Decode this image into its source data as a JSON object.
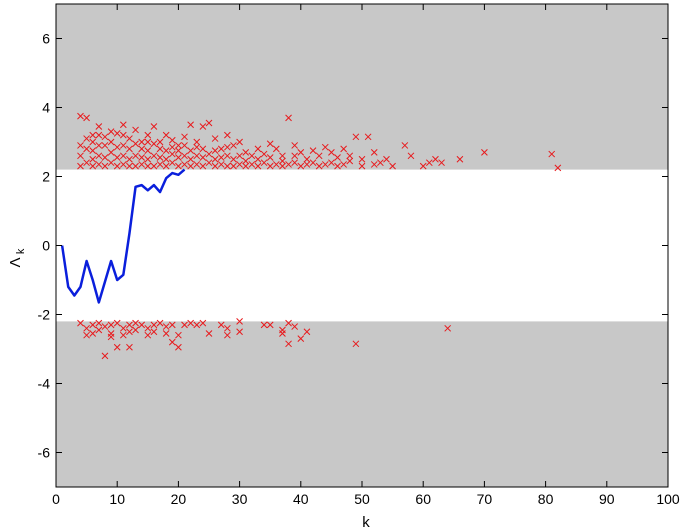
{
  "chart_data": {
    "type": "scatter",
    "xlabel": "k",
    "ylabel": "Λ",
    "ylabel_subscript": "k",
    "xlim": [
      0,
      100
    ],
    "ylim": [
      -7,
      7
    ],
    "xticks": [
      "0",
      "10",
      "20",
      "30",
      "40",
      "50",
      "60",
      "70",
      "80",
      "90",
      "100"
    ],
    "yticks": [
      "-6",
      "-4",
      "-2",
      "0",
      "2",
      "4",
      "6"
    ],
    "grid": false,
    "shaded_regions": [
      {
        "ymin": 2.2,
        "ymax": 7,
        "color": "#c8c8c8"
      },
      {
        "ymin": -7,
        "ymax": -2.2,
        "color": "#c8c8c8"
      }
    ],
    "line_series": {
      "color": "#0a1fdc",
      "points": [
        [
          1,
          0.0
        ],
        [
          2,
          -1.2
        ],
        [
          3,
          -1.45
        ],
        [
          4,
          -1.2
        ],
        [
          5,
          -0.45
        ],
        [
          6,
          -1.0
        ],
        [
          7,
          -1.65
        ],
        [
          8,
          -1.05
        ],
        [
          9,
          -0.45
        ],
        [
          10,
          -1.0
        ],
        [
          11,
          -0.85
        ],
        [
          12,
          0.35
        ],
        [
          13,
          1.7
        ],
        [
          14,
          1.75
        ],
        [
          15,
          1.6
        ],
        [
          16,
          1.75
        ],
        [
          17,
          1.55
        ],
        [
          18,
          1.95
        ],
        [
          19,
          2.1
        ],
        [
          20,
          2.05
        ],
        [
          21,
          2.2
        ]
      ]
    },
    "scatter_series": {
      "color": "#e8191c",
      "marker": "x",
      "points": [
        [
          4,
          3.75
        ],
        [
          5,
          3.7
        ],
        [
          6,
          3.2
        ],
        [
          7,
          3.45
        ],
        [
          8,
          2.9
        ],
        [
          9,
          3.3
        ],
        [
          10,
          3.25
        ],
        [
          11,
          3.5
        ],
        [
          12,
          3.1
        ],
        [
          13,
          3.35
        ],
        [
          14,
          3.0
        ],
        [
          15,
          3.2
        ],
        [
          16,
          3.45
        ],
        [
          17,
          3.0
        ],
        [
          18,
          3.2
        ],
        [
          19,
          3.05
        ],
        [
          20,
          2.9
        ],
        [
          21,
          3.15
        ],
        [
          22,
          3.5
        ],
        [
          23,
          3.0
        ],
        [
          24,
          3.45
        ],
        [
          25,
          3.55
        ],
        [
          26,
          3.1
        ],
        [
          27,
          2.8
        ],
        [
          28,
          3.2
        ],
        [
          29,
          2.9
        ],
        [
          30,
          3.0
        ],
        [
          31,
          2.7
        ],
        [
          32,
          2.6
        ],
        [
          33,
          2.8
        ],
        [
          34,
          2.65
        ],
        [
          35,
          2.95
        ],
        [
          36,
          2.8
        ],
        [
          37,
          2.6
        ],
        [
          38,
          3.7
        ],
        [
          39,
          2.9
        ],
        [
          40,
          2.7
        ],
        [
          41,
          2.5
        ],
        [
          42,
          2.75
        ],
        [
          43,
          2.6
        ],
        [
          44,
          2.85
        ],
        [
          45,
          2.7
        ],
        [
          46,
          2.55
        ],
        [
          47,
          2.8
        ],
        [
          48,
          2.6
        ],
        [
          49,
          3.15
        ],
        [
          50,
          2.5
        ],
        [
          51,
          3.15
        ],
        [
          52,
          2.7
        ],
        [
          53,
          2.4
        ],
        [
          55,
          2.3
        ],
        [
          57,
          2.9
        ],
        [
          58,
          2.6
        ],
        [
          60,
          2.3
        ],
        [
          61,
          2.4
        ],
        [
          62,
          2.5
        ],
        [
          63,
          2.4
        ],
        [
          66,
          2.5
        ],
        [
          70,
          2.7
        ],
        [
          81,
          2.65
        ],
        [
          82,
          2.25
        ],
        [
          4,
          2.3
        ],
        [
          4,
          2.6
        ],
        [
          4,
          2.9
        ],
        [
          5,
          2.4
        ],
        [
          5,
          2.8
        ],
        [
          5,
          3.1
        ],
        [
          6,
          2.3
        ],
        [
          6,
          2.5
        ],
        [
          6,
          2.75
        ],
        [
          6,
          3.0
        ],
        [
          7,
          2.35
        ],
        [
          7,
          2.6
        ],
        [
          7,
          2.9
        ],
        [
          7,
          3.2
        ],
        [
          8,
          2.3
        ],
        [
          8,
          2.55
        ],
        [
          8,
          3.15
        ],
        [
          9,
          2.4
        ],
        [
          9,
          2.7
        ],
        [
          9,
          3.0
        ],
        [
          10,
          2.3
        ],
        [
          10,
          2.55
        ],
        [
          10,
          2.85
        ],
        [
          11,
          2.35
        ],
        [
          11,
          2.6
        ],
        [
          11,
          2.9
        ],
        [
          11,
          3.2
        ],
        [
          12,
          2.3
        ],
        [
          12,
          2.5
        ],
        [
          12,
          2.8
        ],
        [
          13,
          2.3
        ],
        [
          13,
          2.6
        ],
        [
          13,
          2.95
        ],
        [
          14,
          2.35
        ],
        [
          14,
          2.55
        ],
        [
          14,
          2.8
        ],
        [
          15,
          2.3
        ],
        [
          15,
          2.5
        ],
        [
          15,
          2.75
        ],
        [
          15,
          3.0
        ],
        [
          16,
          2.3
        ],
        [
          16,
          2.6
        ],
        [
          16,
          2.95
        ],
        [
          17,
          2.35
        ],
        [
          17,
          2.55
        ],
        [
          17,
          2.8
        ],
        [
          18,
          2.3
        ],
        [
          18,
          2.5
        ],
        [
          18,
          2.75
        ],
        [
          19,
          2.4
        ],
        [
          19,
          2.65
        ],
        [
          19,
          2.85
        ],
        [
          20,
          2.3
        ],
        [
          20,
          2.55
        ],
        [
          20,
          2.75
        ],
        [
          21,
          2.35
        ],
        [
          21,
          2.6
        ],
        [
          21,
          2.9
        ],
        [
          22,
          2.3
        ],
        [
          22,
          2.5
        ],
        [
          22,
          2.75
        ],
        [
          23,
          2.35
        ],
        [
          23,
          2.6
        ],
        [
          23,
          2.85
        ],
        [
          24,
          2.3
        ],
        [
          24,
          2.55
        ],
        [
          24,
          2.8
        ],
        [
          25,
          2.4
        ],
        [
          25,
          2.65
        ],
        [
          26,
          2.3
        ],
        [
          26,
          2.5
        ],
        [
          26,
          2.75
        ],
        [
          27,
          2.35
        ],
        [
          27,
          2.55
        ],
        [
          28,
          2.3
        ],
        [
          28,
          2.6
        ],
        [
          28,
          2.85
        ],
        [
          29,
          2.3
        ],
        [
          29,
          2.5
        ],
        [
          30,
          2.35
        ],
        [
          30,
          2.6
        ],
        [
          31,
          2.3
        ],
        [
          31,
          2.45
        ],
        [
          32,
          2.35
        ],
        [
          33,
          2.3
        ],
        [
          33,
          2.5
        ],
        [
          34,
          2.4
        ],
        [
          35,
          2.3
        ],
        [
          35,
          2.55
        ],
        [
          36,
          2.35
        ],
        [
          37,
          2.3
        ],
        [
          37,
          2.45
        ],
        [
          38,
          2.35
        ],
        [
          39,
          2.4
        ],
        [
          39,
          2.6
        ],
        [
          40,
          2.3
        ],
        [
          41,
          2.35
        ],
        [
          42,
          2.4
        ],
        [
          43,
          2.3
        ],
        [
          44,
          2.35
        ],
        [
          45,
          2.4
        ],
        [
          46,
          2.3
        ],
        [
          47,
          2.35
        ],
        [
          48,
          2.45
        ],
        [
          50,
          2.3
        ],
        [
          52,
          2.35
        ],
        [
          54,
          2.5
        ],
        [
          4,
          -2.25
        ],
        [
          5,
          -2.4
        ],
        [
          5,
          -2.6
        ],
        [
          6,
          -2.3
        ],
        [
          6,
          -2.55
        ],
        [
          7,
          -2.25
        ],
        [
          7,
          -2.45
        ],
        [
          8,
          -2.35
        ],
        [
          8,
          -3.2
        ],
        [
          9,
          -2.3
        ],
        [
          9,
          -2.55
        ],
        [
          9,
          -2.65
        ],
        [
          10,
          -2.25
        ],
        [
          10,
          -2.95
        ],
        [
          11,
          -2.4
        ],
        [
          11,
          -2.6
        ],
        [
          12,
          -2.3
        ],
        [
          12,
          -2.5
        ],
        [
          12,
          -2.95
        ],
        [
          13,
          -2.25
        ],
        [
          13,
          -2.45
        ],
        [
          14,
          -2.3
        ],
        [
          15,
          -2.4
        ],
        [
          15,
          -2.6
        ],
        [
          16,
          -2.3
        ],
        [
          16,
          -2.5
        ],
        [
          17,
          -2.25
        ],
        [
          18,
          -2.35
        ],
        [
          18,
          -2.55
        ],
        [
          19,
          -2.3
        ],
        [
          19,
          -2.8
        ],
        [
          20,
          -2.6
        ],
        [
          20,
          -2.95
        ],
        [
          21,
          -2.3
        ],
        [
          22,
          -2.25
        ],
        [
          23,
          -2.3
        ],
        [
          24,
          -2.25
        ],
        [
          25,
          -2.55
        ],
        [
          27,
          -2.3
        ],
        [
          28,
          -2.4
        ],
        [
          28,
          -2.6
        ],
        [
          30,
          -2.2
        ],
        [
          30,
          -2.5
        ],
        [
          34,
          -2.3
        ],
        [
          35,
          -2.3
        ],
        [
          37,
          -2.45
        ],
        [
          37,
          -2.55
        ],
        [
          38,
          -2.25
        ],
        [
          38,
          -2.85
        ],
        [
          39,
          -2.35
        ],
        [
          40,
          -2.7
        ],
        [
          41,
          -2.5
        ],
        [
          49,
          -2.85
        ],
        [
          64,
          -2.4
        ]
      ]
    }
  }
}
